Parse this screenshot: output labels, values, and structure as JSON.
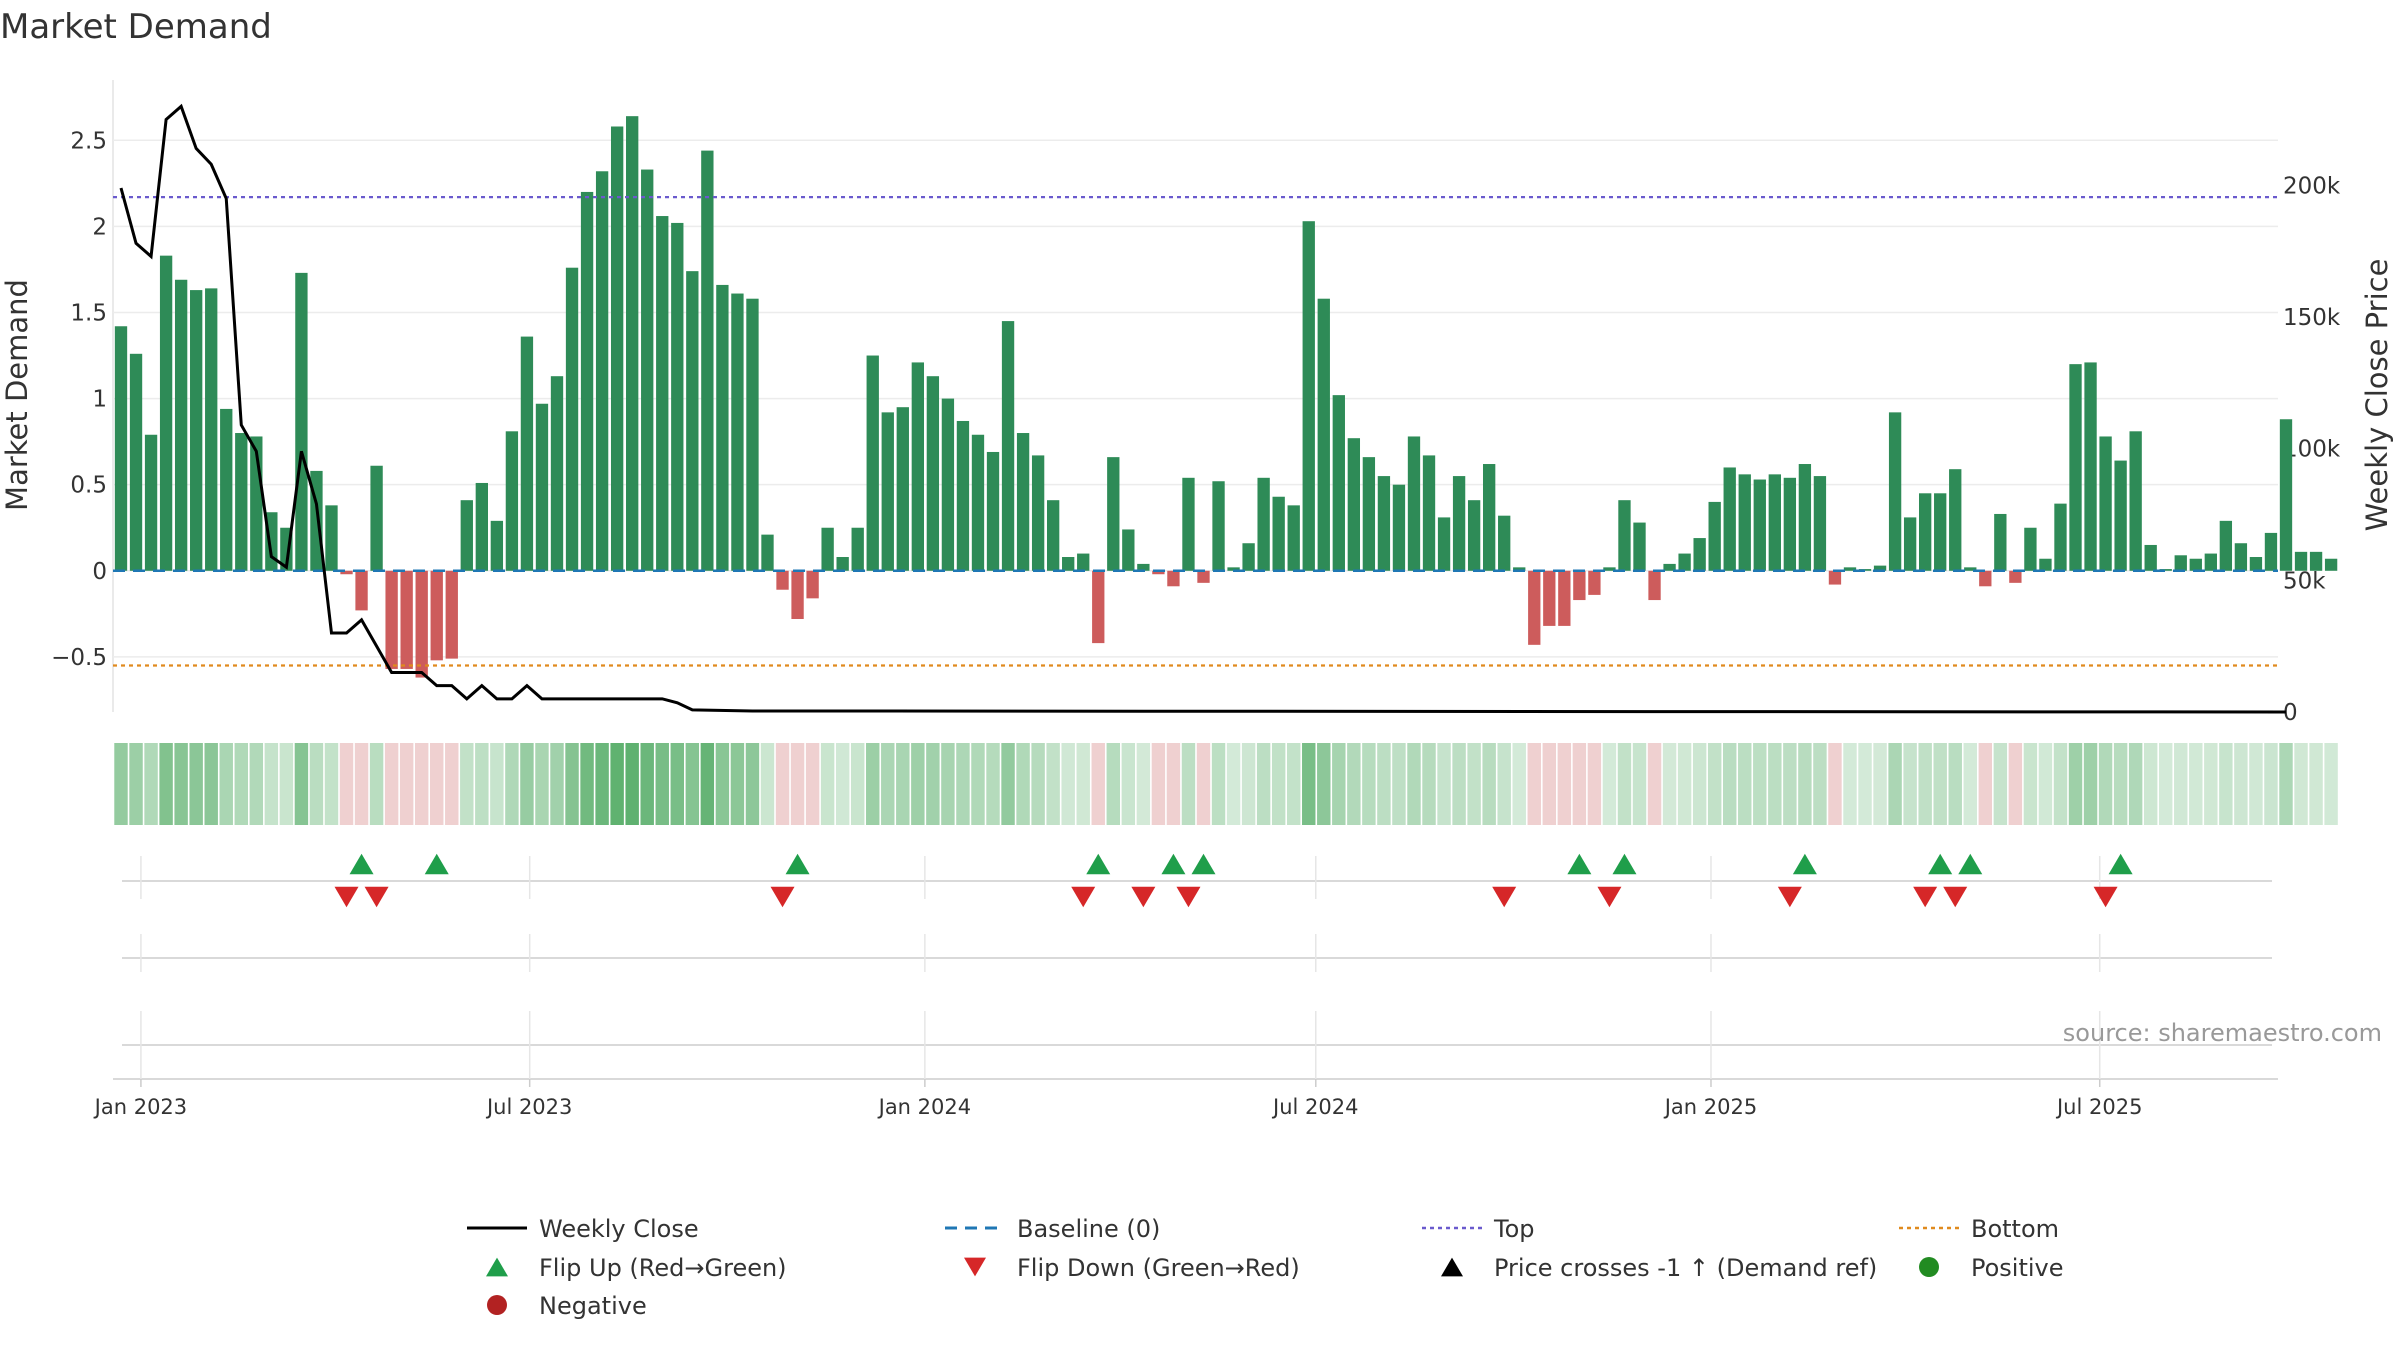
{
  "chart_data": {
    "type": "bar",
    "title": "Market Demand",
    "ylabel_left": "Market Demand",
    "ylabel_right": "Weekly Close Price",
    "ylim_left": [
      -0.82,
      2.85
    ],
    "ylim_right": [
      0,
      240000
    ],
    "yticks_left": [
      {
        "value": 2.5,
        "label": "2.5"
      },
      {
        "value": 2,
        "label": "2"
      },
      {
        "value": 1.5,
        "label": "1.5"
      },
      {
        "value": 1,
        "label": "1"
      },
      {
        "value": 0.5,
        "label": "0.5"
      },
      {
        "value": 0,
        "label": "0"
      },
      {
        "value": -0.5,
        "label": "−0.5"
      }
    ],
    "yticks_right": [
      {
        "value": 200000,
        "label": "200k"
      },
      {
        "value": 150000,
        "label": "150k"
      },
      {
        "value": 100000,
        "label": "100k"
      },
      {
        "value": 50000,
        "label": "50k"
      },
      {
        "value": 0,
        "label": "0"
      }
    ],
    "x_start": "2022-12-19",
    "x_end": "2025-09-22",
    "x_ticks": [
      {
        "date": "2023-01-01",
        "label": "Jan 2023"
      },
      {
        "date": "2023-07-01",
        "label": "Jul 2023"
      },
      {
        "date": "2024-01-01",
        "label": "Jan 2024"
      },
      {
        "date": "2024-07-01",
        "label": "Jul 2024"
      },
      {
        "date": "2025-01-01",
        "label": "Jan 2025"
      },
      {
        "date": "2025-07-01",
        "label": "Jul 2025"
      }
    ],
    "bars_start_date": "2022-12-19",
    "bar_interval_days": 7,
    "demand": [
      1.42,
      1.26,
      0.79,
      1.83,
      1.69,
      1.63,
      1.64,
      0.94,
      0.8,
      0.78,
      0.34,
      0.25,
      1.73,
      0.58,
      0.38,
      -0.02,
      -0.23,
      0.61,
      -0.57,
      -0.57,
      -0.62,
      -0.52,
      -0.51,
      0.41,
      0.51,
      0.29,
      0.81,
      1.36,
      0.97,
      1.13,
      1.76,
      2.2,
      2.32,
      2.58,
      2.64,
      2.33,
      2.06,
      2.02,
      1.74,
      2.44,
      1.66,
      1.61,
      1.58,
      0.21,
      -0.11,
      -0.28,
      -0.16,
      0.25,
      0.08,
      0.25,
      1.25,
      0.92,
      0.95,
      1.21,
      1.13,
      1.0,
      0.87,
      0.79,
      0.69,
      1.45,
      0.8,
      0.67,
      0.41,
      0.08,
      0.1,
      -0.42,
      0.66,
      0.24,
      0.04,
      -0.02,
      -0.09,
      0.54,
      -0.07,
      0.52,
      0.02,
      0.16,
      0.54,
      0.43,
      0.38,
      2.03,
      1.58,
      1.02,
      0.77,
      0.66,
      0.55,
      0.5,
      0.78,
      0.67,
      0.31,
      0.55,
      0.41,
      0.62,
      0.32,
      0.02,
      -0.43,
      -0.32,
      -0.32,
      -0.17,
      -0.14,
      0.02,
      0.41,
      0.28,
      -0.17,
      0.04,
      0.1,
      0.19,
      0.4,
      0.6,
      0.56,
      0.53,
      0.56,
      0.54,
      0.62,
      0.55,
      -0.08,
      0.02,
      0.01,
      0.03,
      0.92,
      0.31,
      0.45,
      0.45,
      0.59,
      0.02,
      -0.09,
      0.33,
      -0.07,
      0.25,
      0.07,
      0.39,
      1.2,
      1.21,
      0.78,
      0.64,
      0.81,
      0.15,
      0.01,
      0.09,
      0.07,
      0.1,
      0.29,
      0.16,
      0.08,
      0.22,
      0.88,
      0.11,
      0.11,
      0.07
    ],
    "weekly_close": [
      {
        "date": "2022-12-19",
        "value": 199000
      },
      {
        "date": "2022-12-26",
        "value": 178000
      },
      {
        "date": "2023-01-02",
        "value": 173000
      },
      {
        "date": "2023-01-09",
        "value": 225000
      },
      {
        "date": "2023-01-16",
        "value": 230000
      },
      {
        "date": "2023-01-23",
        "value": 214000
      },
      {
        "date": "2023-01-30",
        "value": 208000
      },
      {
        "date": "2023-02-06",
        "value": 195000
      },
      {
        "date": "2023-02-13",
        "value": 109000
      },
      {
        "date": "2023-02-20",
        "value": 99000
      },
      {
        "date": "2023-02-27",
        "value": 59000
      },
      {
        "date": "2023-03-06",
        "value": 55000
      },
      {
        "date": "2023-03-13",
        "value": 99000
      },
      {
        "date": "2023-03-20",
        "value": 79000
      },
      {
        "date": "2023-03-27",
        "value": 30000
      },
      {
        "date": "2023-04-03",
        "value": 30000
      },
      {
        "date": "2023-04-10",
        "value": 35000
      },
      {
        "date": "2023-04-17",
        "value": 25000
      },
      {
        "date": "2023-04-24",
        "value": 15000
      },
      {
        "date": "2023-05-01",
        "value": 15000
      },
      {
        "date": "2023-05-08",
        "value": 15000
      },
      {
        "date": "2023-05-15",
        "value": 10000
      },
      {
        "date": "2023-05-22",
        "value": 10000
      },
      {
        "date": "2023-05-29",
        "value": 5000
      },
      {
        "date": "2023-06-05",
        "value": 10000
      },
      {
        "date": "2023-06-12",
        "value": 5000
      },
      {
        "date": "2023-06-19",
        "value": 5000
      },
      {
        "date": "2023-06-26",
        "value": 10000
      },
      {
        "date": "2023-07-03",
        "value": 5000
      },
      {
        "date": "2023-08-28",
        "value": 5000
      },
      {
        "date": "2023-09-04",
        "value": 3500
      },
      {
        "date": "2023-09-11",
        "value": 800
      },
      {
        "date": "2023-10-09",
        "value": 400
      },
      {
        "date": "2025-09-22",
        "value": 0
      }
    ],
    "top_line": 2.17,
    "bottom_line": -0.55,
    "flip_up_dates": [
      "2023-04-10",
      "2023-05-15",
      "2023-10-30",
      "2024-03-18",
      "2024-04-22",
      "2024-05-06",
      "2024-10-28",
      "2024-11-18",
      "2025-02-10",
      "2025-04-14",
      "2025-04-28",
      "2025-07-07"
    ],
    "flip_down_dates": [
      "2023-04-03",
      "2023-04-17",
      "2023-10-23",
      "2024-03-11",
      "2024-04-08",
      "2024-04-29",
      "2024-09-23",
      "2024-11-11",
      "2025-02-03",
      "2025-04-07",
      "2025-04-21",
      "2025-06-30"
    ],
    "legend": [
      {
        "label": "Weekly Close",
        "symbol": "solid-line",
        "color": "#000000"
      },
      {
        "label": "Baseline (0)",
        "symbol": "dashed-line",
        "color": "#1f77b4"
      },
      {
        "label": "Top",
        "symbol": "dotted-line",
        "color": "#6a5acd"
      },
      {
        "label": "Bottom",
        "symbol": "dotted-line",
        "color": "#e08a1e"
      },
      {
        "label": "Flip Up (Red→Green)",
        "symbol": "triangle-up",
        "color": "#1f9e4a"
      },
      {
        "label": "Flip Down (Green→Red)",
        "symbol": "triangle-down",
        "color": "#d62728"
      },
      {
        "label": "Price crosses -1 ↑ (Demand ref)",
        "symbol": "triangle-up",
        "color": "#000000"
      },
      {
        "label": "Positive",
        "symbol": "circle",
        "color": "#228b22"
      },
      {
        "label": "Negative",
        "symbol": "circle",
        "color": "#b22222"
      }
    ],
    "source": "source: sharemaestro.com"
  },
  "colors": {
    "positive_bar": "#2e8b57",
    "negative_bar": "#cd5c5c",
    "price_line": "#000000",
    "baseline": "#1f77b4",
    "top": "#6a5acd",
    "bottom": "#e08a1e",
    "flip_up": "#1f9e4a",
    "flip_down": "#d62728"
  }
}
